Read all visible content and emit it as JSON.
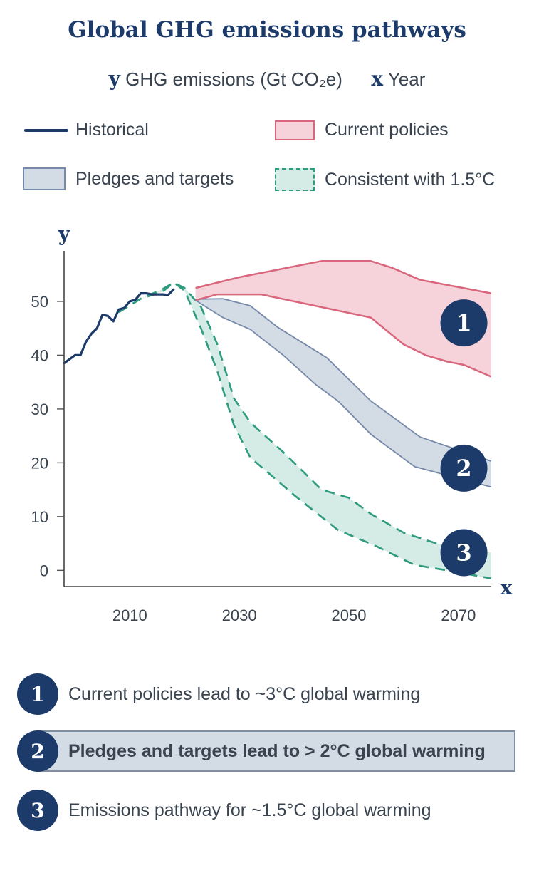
{
  "title": "Global GHG emissions pathways",
  "axis_definition": {
    "y_symbol": "y",
    "y_text": "GHG emissions (Gt CO₂e)",
    "x_symbol": "x",
    "x_text": "Year"
  },
  "legend": {
    "historical": "Historical",
    "current_policies": "Current policies",
    "pledges": "Pledges and targets",
    "consistent": "Consistent with 1.5°C"
  },
  "colors": {
    "navy": "#1d3b6a",
    "red_fill": "#f6d3da",
    "red_line": "#d9667c",
    "blue_fill": "#d3dbe5",
    "blue_line": "#7589a8",
    "green_fill": "#d5ece6",
    "green_line": "#2e9b7e"
  },
  "chart_data": {
    "type": "area",
    "xlabel": "x",
    "ylabel": "y",
    "xlim": [
      1998,
      2076
    ],
    "ylim": [
      -3,
      59
    ],
    "x_ticks": [
      2010,
      2030,
      2050,
      2070
    ],
    "y_ticks": [
      0,
      10,
      20,
      30,
      40,
      50
    ],
    "grid": false,
    "series": [
      {
        "name": "Historical",
        "kind": "line",
        "points": [
          [
            1998,
            38.5
          ],
          [
            2000,
            40
          ],
          [
            2001,
            40
          ],
          [
            2002,
            42.5
          ],
          [
            2003,
            44
          ],
          [
            2004,
            45
          ],
          [
            2005,
            47.5
          ],
          [
            2006,
            47.3
          ],
          [
            2007,
            46.3
          ],
          [
            2008,
            48.5
          ],
          [
            2009,
            48.8
          ],
          [
            2010,
            50
          ],
          [
            2011,
            50.3
          ],
          [
            2012,
            51.5
          ],
          [
            2013,
            51.5
          ],
          [
            2014,
            51.3
          ],
          [
            2015,
            51.3
          ],
          [
            2016,
            51.3
          ],
          [
            2017,
            51.2
          ],
          [
            2018,
            52.2
          ]
        ]
      },
      {
        "name": "Current policies",
        "kind": "band",
        "upper": [
          [
            2022,
            52.5
          ],
          [
            2030,
            54.5
          ],
          [
            2045,
            57.5
          ],
          [
            2054,
            57.5
          ],
          [
            2058,
            56.2
          ],
          [
            2063,
            54
          ],
          [
            2076,
            51.5
          ]
        ],
        "lower": [
          [
            2022,
            50.2
          ],
          [
            2026,
            51.3
          ],
          [
            2034,
            51.3
          ],
          [
            2040,
            50
          ],
          [
            2054,
            47
          ],
          [
            2060,
            42
          ],
          [
            2064,
            40
          ],
          [
            2068,
            38.8
          ],
          [
            2071,
            38.2
          ],
          [
            2076,
            36
          ]
        ]
      },
      {
        "name": "Pledges and targets",
        "kind": "band",
        "upper": [
          [
            2022,
            50.4
          ],
          [
            2027,
            50.5
          ],
          [
            2032,
            49.2
          ],
          [
            2037,
            45.2
          ],
          [
            2046,
            39.5
          ],
          [
            2054,
            31.5
          ],
          [
            2063,
            24.8
          ],
          [
            2076,
            20.3
          ]
        ],
        "lower": [
          [
            2022,
            50.2
          ],
          [
            2027,
            47
          ],
          [
            2032,
            44.8
          ],
          [
            2038,
            40
          ],
          [
            2044,
            34.5
          ],
          [
            2048,
            31.5
          ],
          [
            2054,
            25.3
          ],
          [
            2062,
            19.3
          ],
          [
            2076,
            15.5
          ]
        ]
      },
      {
        "name": "Consistent with 1.5°C",
        "kind": "band",
        "upper": [
          [
            2008,
            48
          ],
          [
            2012,
            50.5
          ],
          [
            2016,
            52.3
          ],
          [
            2018,
            53.5
          ],
          [
            2020,
            52.5
          ],
          [
            2023,
            49
          ],
          [
            2026,
            42
          ],
          [
            2029,
            32
          ],
          [
            2032,
            27.5
          ],
          [
            2038,
            22
          ],
          [
            2045,
            15
          ],
          [
            2050,
            13.5
          ],
          [
            2054,
            10.5
          ],
          [
            2060,
            7
          ],
          [
            2066,
            5
          ],
          [
            2076,
            3.3
          ]
        ],
        "lower": [
          [
            2008,
            48
          ],
          [
            2012,
            50.5
          ],
          [
            2016,
            51.8
          ],
          [
            2018,
            53.5
          ],
          [
            2020,
            52
          ],
          [
            2023,
            45
          ],
          [
            2026,
            37
          ],
          [
            2029,
            27
          ],
          [
            2032,
            21
          ],
          [
            2040,
            14
          ],
          [
            2048,
            7.5
          ],
          [
            2055,
            4.5
          ],
          [
            2062,
            1
          ],
          [
            2068,
            0
          ],
          [
            2076,
            -1.5
          ]
        ]
      }
    ],
    "markers": [
      {
        "label": "1",
        "x": 2071,
        "y": 46
      },
      {
        "label": "2",
        "x": 2071,
        "y": 19
      },
      {
        "label": "3",
        "x": 2071,
        "y": 3.3
      }
    ]
  },
  "notes": [
    {
      "num": "1",
      "text": "Current policies lead to ~3°C global warming"
    },
    {
      "num": "2",
      "text": "Pledges and targets lead to > 2°C global warming"
    },
    {
      "num": "3",
      "text": "Emissions pathway for ~1.5°C global warming"
    }
  ]
}
